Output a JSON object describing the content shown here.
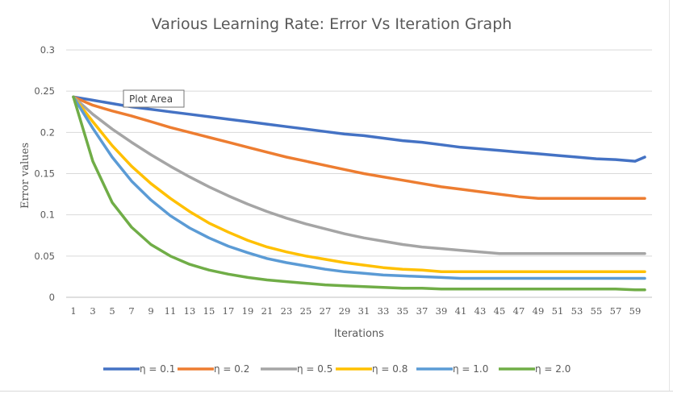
{
  "chart_data": {
    "type": "line",
    "title": "Various Learning Rate: Error Vs Iteration Graph",
    "xlabel": "Iterations",
    "ylabel": "Error values",
    "ylim": [
      0,
      0.3
    ],
    "yticks": [
      "0",
      "0.05",
      "0.1",
      "0.15",
      "0.2",
      "0.25",
      "0.3"
    ],
    "xticks": [
      "1",
      "3",
      "5",
      "7",
      "9",
      "11",
      "13",
      "15",
      "17",
      "19",
      "21",
      "23",
      "25",
      "27",
      "29",
      "31",
      "33",
      "35",
      "37",
      "39",
      "41",
      "43",
      "45",
      "47",
      "49",
      "51",
      "53",
      "55",
      "57",
      "59"
    ],
    "grid": true,
    "legend_position": "bottom",
    "tooltip": "Plot Area",
    "x": [
      1,
      3,
      5,
      7,
      9,
      11,
      13,
      15,
      17,
      19,
      21,
      23,
      25,
      27,
      29,
      31,
      33,
      35,
      37,
      39,
      41,
      43,
      45,
      47,
      49,
      51,
      53,
      55,
      57,
      59,
      60
    ],
    "series": [
      {
        "name": "η = 0.1",
        "color": "#4472C4",
        "values": [
          0.243,
          0.239,
          0.235,
          0.231,
          0.228,
          0.225,
          0.222,
          0.219,
          0.216,
          0.213,
          0.21,
          0.207,
          0.204,
          0.201,
          0.198,
          0.196,
          0.193,
          0.19,
          0.188,
          0.185,
          0.182,
          0.18,
          0.178,
          0.176,
          0.174,
          0.172,
          0.17,
          0.168,
          0.167,
          0.165,
          0.17
        ]
      },
      {
        "name": "η = 0.2",
        "color": "#ED7D31",
        "values": [
          0.243,
          0.233,
          0.226,
          0.22,
          0.213,
          0.206,
          0.2,
          0.194,
          0.188,
          0.182,
          0.176,
          0.17,
          0.165,
          0.16,
          0.155,
          0.15,
          0.146,
          0.142,
          0.138,
          0.134,
          0.131,
          0.128,
          0.125,
          0.122,
          0.12,
          0.12,
          0.12,
          0.12,
          0.12,
          0.12,
          0.12
        ]
      },
      {
        "name": "η = 0.5",
        "color": "#A5A5A5",
        "values": [
          0.243,
          0.222,
          0.204,
          0.188,
          0.173,
          0.159,
          0.146,
          0.134,
          0.123,
          0.113,
          0.104,
          0.096,
          0.089,
          0.083,
          0.077,
          0.072,
          0.068,
          0.064,
          0.061,
          0.059,
          0.057,
          0.055,
          0.053,
          0.053,
          0.053,
          0.053,
          0.053,
          0.053,
          0.053,
          0.053,
          0.053
        ]
      },
      {
        "name": "η = 0.8",
        "color": "#FFC000",
        "values": [
          0.243,
          0.213,
          0.184,
          0.159,
          0.138,
          0.12,
          0.104,
          0.09,
          0.079,
          0.069,
          0.061,
          0.055,
          0.05,
          0.046,
          0.042,
          0.039,
          0.036,
          0.034,
          0.033,
          0.031,
          0.031,
          0.031,
          0.031,
          0.031,
          0.031,
          0.031,
          0.031,
          0.031,
          0.031,
          0.031,
          0.031
        ]
      },
      {
        "name": "η = 1.0",
        "color": "#5B9BD5",
        "values": [
          0.243,
          0.205,
          0.17,
          0.141,
          0.118,
          0.099,
          0.084,
          0.072,
          0.062,
          0.054,
          0.047,
          0.042,
          0.038,
          0.034,
          0.031,
          0.029,
          0.027,
          0.026,
          0.025,
          0.024,
          0.023,
          0.023,
          0.023,
          0.023,
          0.023,
          0.023,
          0.023,
          0.023,
          0.023,
          0.023,
          0.023
        ]
      },
      {
        "name": "η = 2.0",
        "color": "#70AD47",
        "values": [
          0.243,
          0.165,
          0.115,
          0.085,
          0.064,
          0.05,
          0.04,
          0.033,
          0.028,
          0.024,
          0.021,
          0.019,
          0.017,
          0.015,
          0.014,
          0.013,
          0.012,
          0.011,
          0.011,
          0.01,
          0.01,
          0.01,
          0.01,
          0.01,
          0.01,
          0.01,
          0.01,
          0.01,
          0.01,
          0.009,
          0.009
        ]
      }
    ]
  }
}
